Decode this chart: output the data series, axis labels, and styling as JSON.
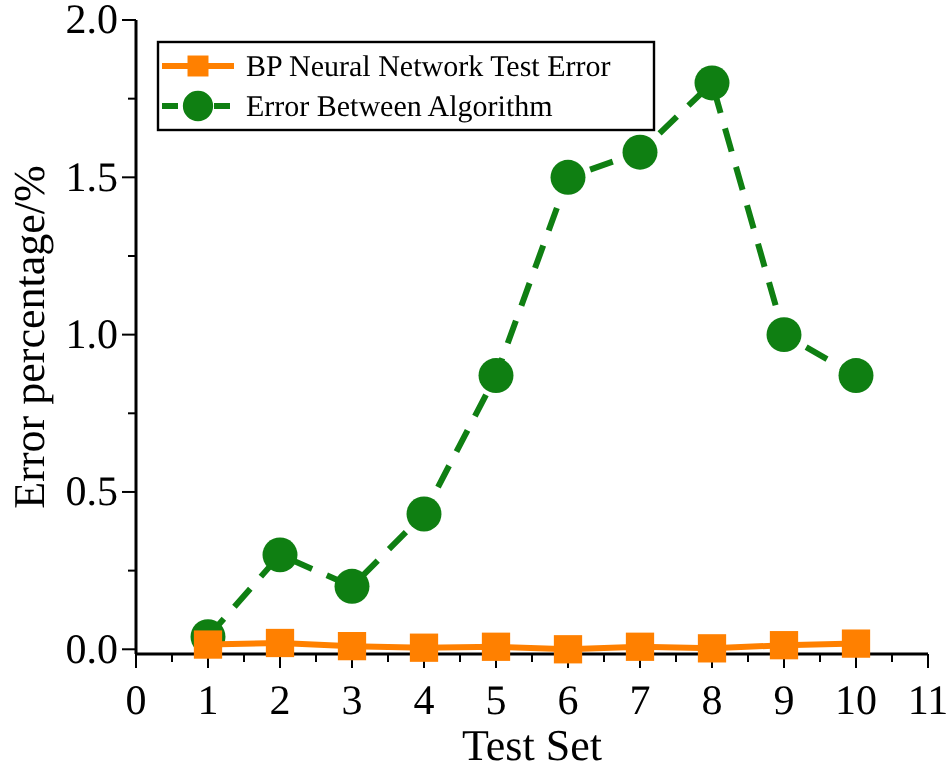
{
  "chart_data": {
    "type": "line",
    "xlabel": "Test Set",
    "ylabel": "Error percentage/%",
    "x": [
      1,
      2,
      3,
      4,
      5,
      6,
      7,
      8,
      9,
      10
    ],
    "series": [
      {
        "name": "BP Neural Network Test Error",
        "color": "#ff8000",
        "marker": "square",
        "line_style": "solid",
        "values": [
          0.015,
          0.02,
          0.01,
          0.005,
          0.008,
          0.0,
          0.008,
          0.003,
          0.013,
          0.018
        ]
      },
      {
        "name": "Error Between Algorithm",
        "color": "#0f7f12",
        "marker": "circle",
        "line_style": "dashed",
        "values": [
          0.04,
          0.3,
          0.2,
          0.43,
          0.87,
          1.5,
          1.58,
          1.8,
          1.0,
          0.87
        ]
      }
    ],
    "xlim": [
      0,
      11
    ],
    "ylim": [
      -0.015,
      2.0
    ],
    "xticks": [
      0,
      {
        "value": 0.5,
        "label": null
      },
      1,
      {
        "value": 1.5,
        "label": null
      },
      2,
      {
        "value": 2.5,
        "label": null
      },
      3,
      {
        "value": 3.5,
        "label": null
      },
      4,
      {
        "value": 4.5,
        "label": null
      },
      5,
      {
        "value": 5.5,
        "label": null
      },
      6,
      {
        "value": 6.5,
        "label": null
      },
      7,
      {
        "value": 7.5,
        "label": null
      },
      8,
      {
        "value": 8.5,
        "label": null
      },
      9,
      {
        "value": 9.5,
        "label": null
      },
      10,
      {
        "value": 10.5,
        "label": null
      },
      11
    ],
    "yticks": [
      {
        "value": 0,
        "label": "0.0"
      },
      {
        "value": 0.25,
        "label": null
      },
      0.5,
      {
        "value": 0.75,
        "label": null
      },
      {
        "value": 1,
        "label": "1.0"
      },
      {
        "value": 1.25,
        "label": null
      },
      1.5,
      {
        "value": 1.75,
        "label": null
      },
      {
        "value": 2,
        "label": "2.0"
      }
    ],
    "grid": false,
    "legend": "top left"
  }
}
